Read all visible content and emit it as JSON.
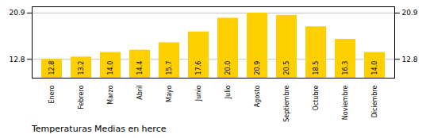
{
  "chart_data": {
    "type": "bar",
    "title": "Temperaturas Medias en herce",
    "categories": [
      "Enero",
      "Febrero",
      "Marzo",
      "Abril",
      "Mayo",
      "Junio",
      "Julio",
      "Agosto",
      "Septiembre",
      "Octubre",
      "Noviembre",
      "Diciembre"
    ],
    "values": [
      12.8,
      13.2,
      14.0,
      14.4,
      15.7,
      17.6,
      20.0,
      20.9,
      20.5,
      18.5,
      16.3,
      14.0
    ],
    "value_labels": [
      "12.8",
      "13.2",
      "14.0",
      "14.4",
      "15.7",
      "17.6",
      "20.0",
      "20.9",
      "20.5",
      "18.5",
      "16.3",
      "14.0"
    ],
    "color": "#FFD000",
    "ylim": [
      9.5,
      22.0
    ],
    "yticks": [
      12.8,
      20.9
    ],
    "grid": true,
    "data_labels": true
  }
}
